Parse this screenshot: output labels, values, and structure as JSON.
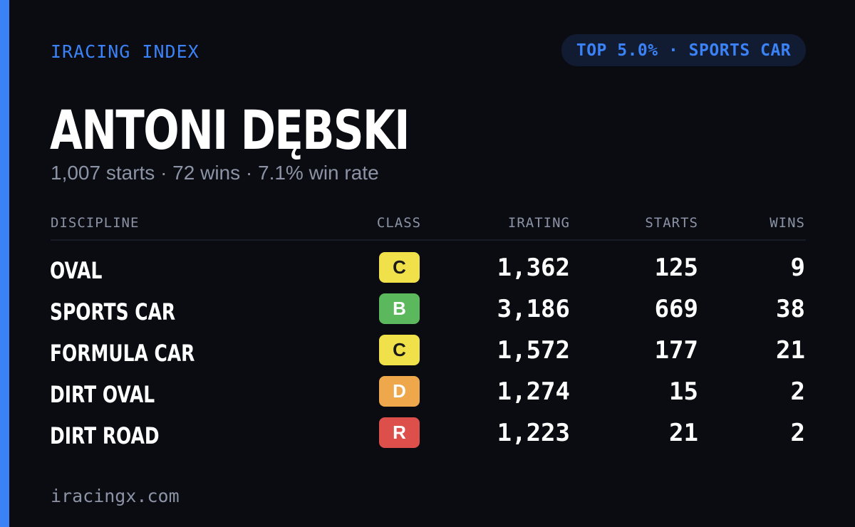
{
  "brand": "IRACING INDEX",
  "badge": "TOP 5.0% · SPORTS CAR",
  "player_name": "ANTONI DĘBSKI",
  "summary": "1,007 starts · 72 wins · 7.1% win rate",
  "colors": {
    "accent": "#3b82f6",
    "background": "#0a0c12",
    "muted_text": "#8b93a5",
    "class_C": "#f0e14a",
    "class_B": "#5cb85c",
    "class_D": "#eea84b",
    "class_R": "#dc4f4a"
  },
  "table": {
    "headers": {
      "discipline": "DISCIPLINE",
      "class": "CLASS",
      "irating": "IRATING",
      "starts": "STARTS",
      "wins": "WINS"
    },
    "rows": [
      {
        "discipline": "OVAL",
        "class": "C",
        "irating": "1,362",
        "starts": "125",
        "wins": "9"
      },
      {
        "discipline": "SPORTS CAR",
        "class": "B",
        "irating": "3,186",
        "starts": "669",
        "wins": "38"
      },
      {
        "discipline": "FORMULA CAR",
        "class": "C",
        "irating": "1,572",
        "starts": "177",
        "wins": "21"
      },
      {
        "discipline": "DIRT OVAL",
        "class": "D",
        "irating": "1,274",
        "starts": "15",
        "wins": "2"
      },
      {
        "discipline": "DIRT ROAD",
        "class": "R",
        "irating": "1,223",
        "starts": "21",
        "wins": "2"
      }
    ]
  },
  "footer": "iracingx.com"
}
